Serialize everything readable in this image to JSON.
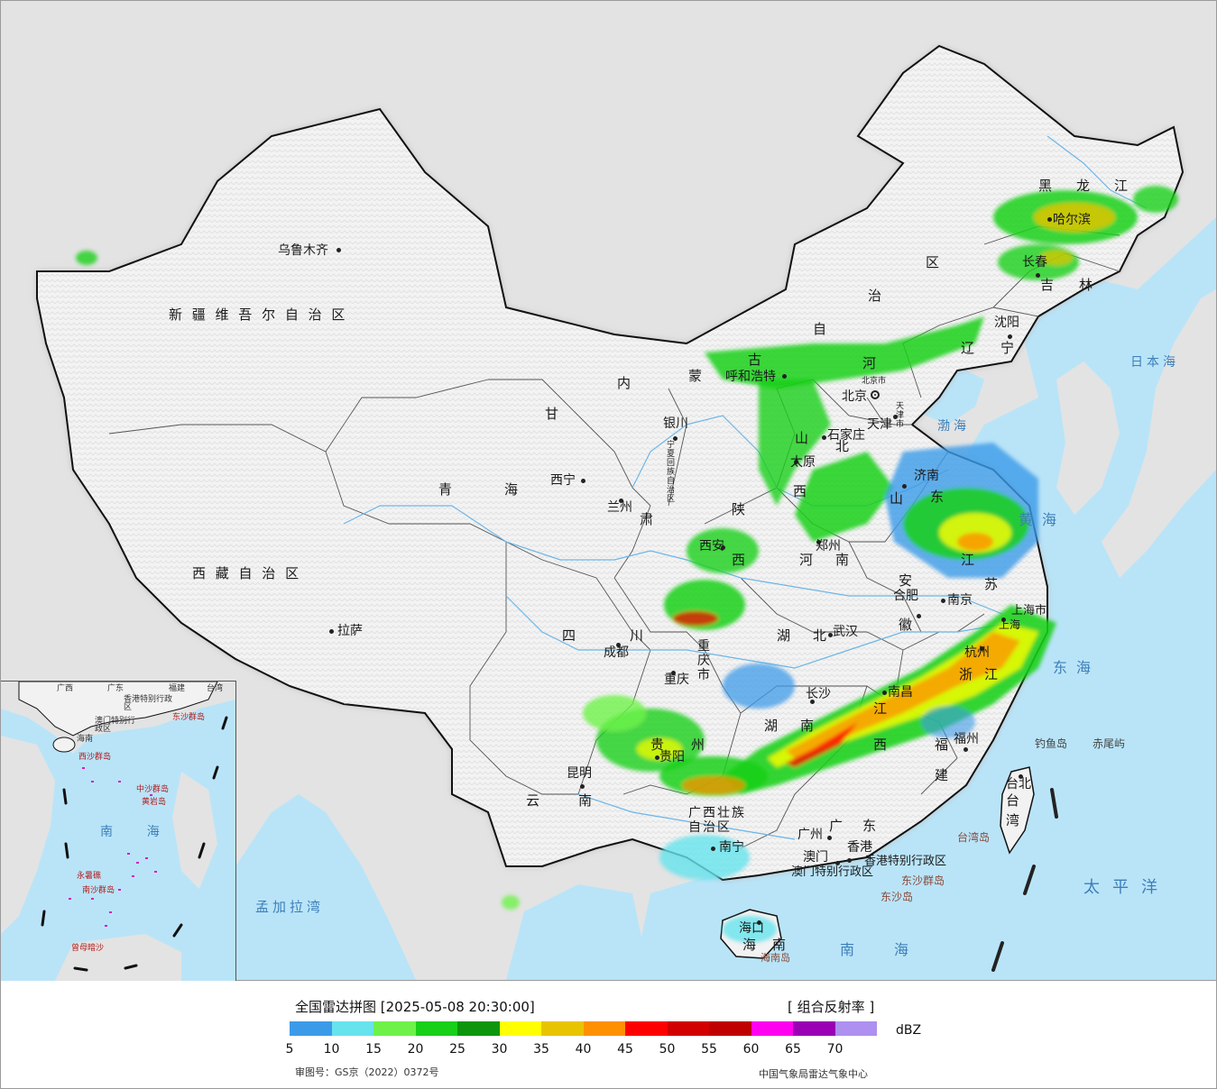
{
  "legend": {
    "title": "全国雷达拼图 [2025-05-08 20:30:00]",
    "product": "[ 组合反射率 ]",
    "unit": "dBZ",
    "ticks": [
      "5",
      "10",
      "15",
      "20",
      "25",
      "30",
      "35",
      "40",
      "45",
      "50",
      "55",
      "60",
      "65",
      "70"
    ],
    "colors": [
      "#3c9be8",
      "#66e3ec",
      "#6ef24a",
      "#18d018",
      "#0d960d",
      "#ffff00",
      "#e8c400",
      "#ff9000",
      "#ff0000",
      "#d20000",
      "#c00000",
      "#ff00f0",
      "#9a00b4",
      "#ad90f0"
    ],
    "approval": "审图号：GS京（2022）0372号",
    "organization": "中国气象局雷达气象中心"
  },
  "map": {
    "colors": {
      "sea": "#b9e4f8",
      "land_china": "#f2f2f2",
      "land_other": "#e3e3e3",
      "border": "#111111",
      "river": "#6cb6e8"
    },
    "provinces": {
      "xinjiang": "新 疆 维 吾 尔 自 治 区",
      "xizang": "西 藏 自 治 区",
      "qinghai_1": "青",
      "qinghai_2": "海",
      "gansu": "甘",
      "gansu_2": "肃",
      "neimenggu": [
        "内",
        "蒙",
        "古",
        "自",
        "治",
        "区"
      ],
      "heilongjiang": [
        "黑",
        "龙",
        "江"
      ],
      "jilin": [
        "吉",
        "林"
      ],
      "liaoning": [
        "辽",
        "宁"
      ],
      "hebei": [
        "河",
        "北"
      ],
      "shanxi": [
        "山",
        "西"
      ],
      "shaanxi": [
        "陕",
        "西"
      ],
      "henan": [
        "河",
        "南"
      ],
      "shandong": [
        "山",
        "东"
      ],
      "jiangsu": [
        "江",
        "苏"
      ],
      "anhui": [
        "安",
        "徽"
      ],
      "hubei": [
        "湖",
        "北"
      ],
      "hunan": [
        "湖",
        "南"
      ],
      "jiangxi": [
        "江",
        "西"
      ],
      "zhejiang": [
        "浙",
        "江"
      ],
      "fujian": [
        "福",
        "建"
      ],
      "guangdong": [
        "广",
        "东"
      ],
      "guangxi": "广西壮族自治区",
      "guizhou": [
        "贵",
        "州"
      ],
      "sichuan": [
        "四",
        "川"
      ],
      "yunnan": [
        "云",
        "南"
      ],
      "chongqing": "重庆市",
      "ningxia": "宁夏回族自治区",
      "hainan": [
        "海",
        "南"
      ],
      "taiwan": [
        "台",
        "湾"
      ],
      "shanghai": "上海市",
      "hk": "香港特别行政区",
      "macau": "澳门特别行政区"
    },
    "cities": {
      "urumqi": "乌鲁木齐",
      "lhasa": "拉萨",
      "xining": "西宁",
      "lanzhou": "兰州",
      "yinchuan": "银川",
      "hohhot": "呼和浩特",
      "beijing": "北京",
      "beijing_small": "北京市",
      "tianjin": "天津",
      "tianjin_small": "天津市",
      "shijiazhuang": "石家庄",
      "taiyuan": "太原",
      "xian": "西安",
      "zhengzhou": "郑州",
      "jinan": "济南",
      "shenyang": "沈阳",
      "changchun": "长春",
      "harbin": "哈尔滨",
      "hefei": "合肥",
      "nanjing": "南京",
      "shanghai": "上海",
      "hangzhou": "杭州",
      "wuhan": "武汉",
      "changsha": "长沙",
      "nanchang": "南昌",
      "fuzhou": "福州",
      "taipei": "台北",
      "guangzhou": "广州",
      "hongkong": "香港",
      "macao": "澳门",
      "nanning": "南宁",
      "haikou": "海口",
      "guiyang": "贵阳",
      "kunming": "昆明",
      "chengdu": "成都",
      "chongqing": "重庆"
    },
    "seas": {
      "japan_sea": "日本海",
      "bohai": "渤海",
      "yellow_sea": "黄海",
      "east_sea": "东海",
      "pacific": "太平洋",
      "south_sea": "南海",
      "bengal": "孟加拉湾"
    },
    "islands": {
      "diaoyu": "钓鱼岛",
      "chiwei": "赤尾屿",
      "taiwan_island": "台湾岛",
      "dongsha_islands": "东沙群岛",
      "dongsha": "东沙岛",
      "hainan_island": "海南岛"
    },
    "inset": {
      "south_sea": "南    海",
      "labels": [
        "广西",
        "广东",
        "福建",
        "台湾",
        "香港特别行政区",
        "澳门特别行政区",
        "东沙群岛",
        "海南",
        "西沙群岛",
        "中沙群岛",
        "黄岩岛",
        "南沙群岛",
        "曾母暗沙",
        "永暑礁"
      ]
    }
  }
}
